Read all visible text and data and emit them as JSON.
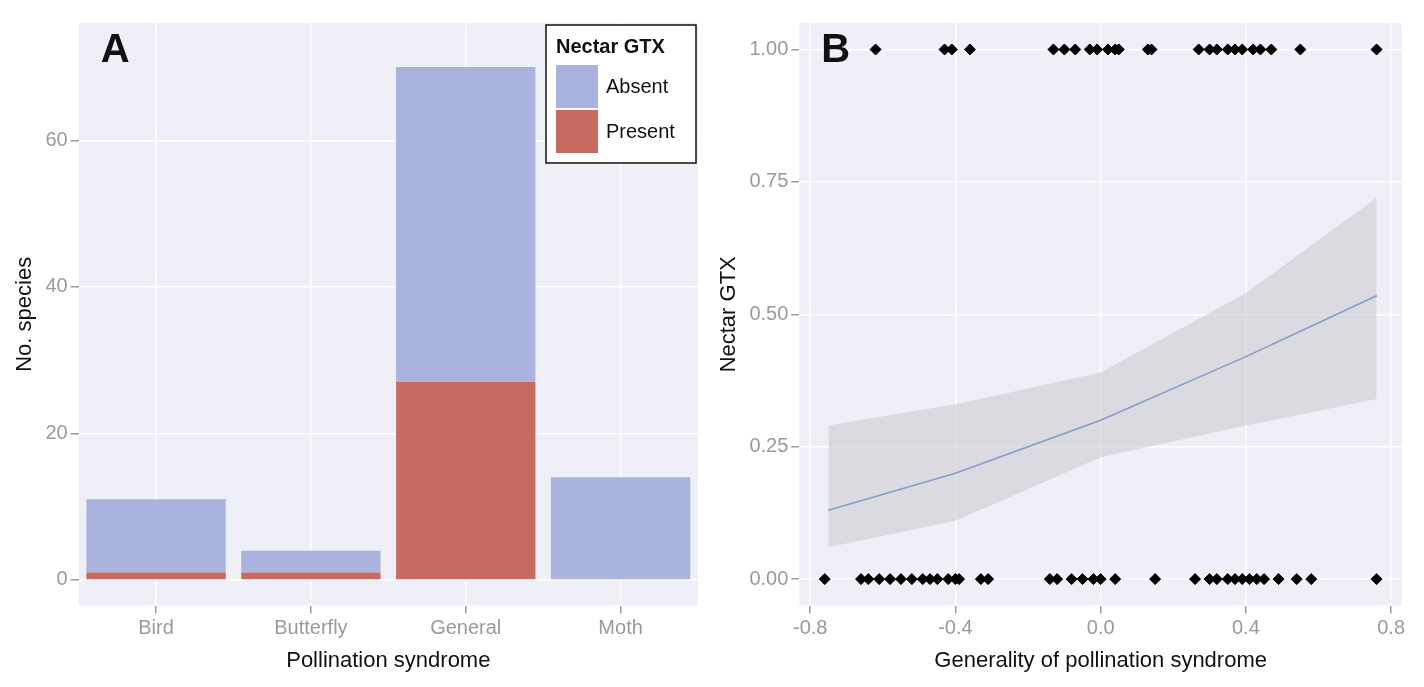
{
  "chart_data": [
    {
      "type": "bar",
      "stacked": true,
      "xlabel": "Pollination syndrome",
      "ylabel": "No. species",
      "legend_title": "Nectar GTX",
      "legend": "top right",
      "grid": true,
      "annotations": [
        "A"
      ],
      "categories": [
        "Bird",
        "Butterfly",
        "General",
        "Moth"
      ],
      "ylim": [
        -3.5,
        76
      ],
      "yticks": [
        0,
        20,
        40,
        60
      ],
      "series": [
        {
          "name": "Present",
          "color": "#c86a5f",
          "values": [
            1,
            1,
            27,
            0
          ]
        },
        {
          "name": "Absent",
          "color": "#a9b3dd",
          "values": [
            10,
            3,
            43,
            14
          ]
        }
      ]
    },
    {
      "type": "scatter",
      "xlabel": "Generality of pollination syndrome",
      "ylabel": "Nectar GTX",
      "grid": true,
      "annotations": [
        "B"
      ],
      "xlim": [
        -0.83,
        0.83
      ],
      "xticks": [
        {
          "value": -0.8,
          "label": "-0.8"
        },
        {
          "value": -0.4,
          "label": "-0.4"
        },
        {
          "value": 0,
          "label": "0.0"
        },
        {
          "value": 0.4,
          "label": "0.4"
        },
        {
          "value": 0.8,
          "label": "0.8"
        }
      ],
      "ylim": [
        -0.05,
        1.05
      ],
      "yticks": [
        {
          "value": 0,
          "label": "0.00"
        },
        {
          "value": 0.25,
          "label": "0.25"
        },
        {
          "value": 0.5,
          "label": "0.50"
        },
        {
          "value": 0.75,
          "label": "0.75"
        },
        {
          "value": 1,
          "label": "1.00"
        }
      ],
      "series": [
        {
          "type": "scatter",
          "marker": "diamond",
          "color": "#000000",
          "x": [
            -0.62,
            -0.43,
            -0.41,
            -0.36,
            -0.13,
            -0.1,
            -0.07,
            -0.03,
            -0.01,
            0.02,
            0.04,
            0.05,
            0.13,
            0.14,
            0.27,
            0.3,
            0.32,
            0.35,
            0.37,
            0.39,
            0.42,
            0.44,
            0.47,
            0.55,
            0.76,
            -0.76,
            -0.66,
            -0.64,
            -0.61,
            -0.58,
            -0.55,
            -0.52,
            -0.49,
            -0.47,
            -0.45,
            -0.42,
            -0.4,
            -0.39,
            -0.33,
            -0.31,
            -0.14,
            -0.12,
            -0.08,
            -0.05,
            -0.02,
            0,
            0.04,
            0.15,
            0.26,
            0.3,
            0.32,
            0.35,
            0.37,
            0.39,
            0.41,
            0.43,
            0.45,
            0.49,
            0.54,
            0.58,
            0.76
          ],
          "values": [
            1,
            1,
            1,
            1,
            1,
            1,
            1,
            1,
            1,
            1,
            1,
            1,
            1,
            1,
            1,
            1,
            1,
            1,
            1,
            1,
            1,
            1,
            1,
            1,
            1,
            0,
            0,
            0,
            0,
            0,
            0,
            0,
            0,
            0,
            0,
            0,
            0,
            0,
            0,
            0,
            0,
            0,
            0,
            0,
            0,
            0,
            0,
            0,
            0,
            0,
            0,
            0,
            0,
            0,
            0,
            0,
            0,
            0,
            0,
            0,
            0
          ]
        },
        {
          "type": "line",
          "color": "#3366cc",
          "x": [
            -0.75,
            -0.4,
            0,
            0.4,
            0.76
          ],
          "values": [
            0.13,
            0.2,
            0.3,
            0.42,
            0.535
          ],
          "lower": [
            0.06,
            0.11,
            0.23,
            0.29,
            0.34
          ],
          "upper": [
            0.29,
            0.33,
            0.39,
            0.54,
            0.72
          ]
        }
      ]
    }
  ]
}
